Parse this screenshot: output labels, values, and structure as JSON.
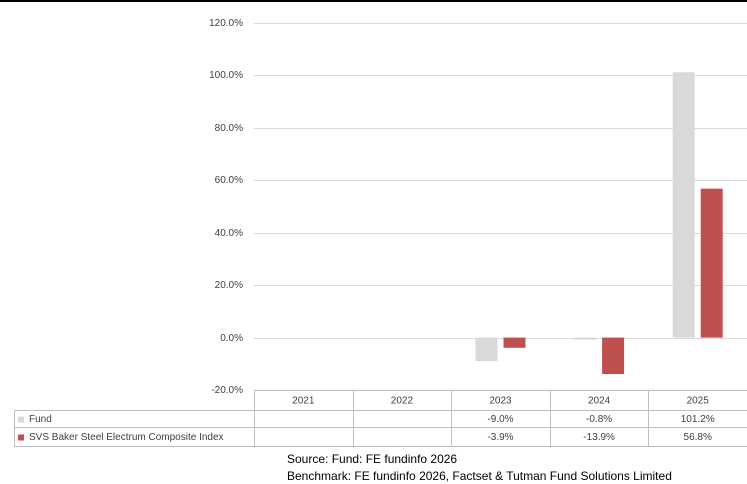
{
  "chart_data": {
    "type": "bar",
    "categories": [
      "2021",
      "2022",
      "2023",
      "2024",
      "2025"
    ],
    "series": [
      {
        "name": "Fund",
        "color": "#d9d9d9",
        "values": [
          null,
          null,
          -9.0,
          -0.8,
          101.2
        ],
        "labels": [
          "",
          "",
          "-9.0%",
          "-0.8%",
          "101.2%"
        ]
      },
      {
        "name": "SVS Baker Steel Electrum Composite Index",
        "color": "#c0504d",
        "values": [
          null,
          null,
          -3.9,
          -13.9,
          56.8
        ],
        "labels": [
          "",
          "",
          "-3.9%",
          "-13.9%",
          "56.8%"
        ]
      }
    ],
    "yticks": [
      -20,
      0,
      20,
      40,
      60,
      80,
      100,
      120
    ],
    "ytick_labels": [
      "-20.0%",
      "0.0%",
      "20.0%",
      "40.0%",
      "60.0%",
      "80.0%",
      "100.0%",
      "120.0%"
    ],
    "ylim": [
      -20,
      120
    ],
    "grid": true,
    "legend": "data-table"
  },
  "source": {
    "fund": "Source: Fund: FE fundinfo 2026",
    "benchmark": "Benchmark: FE fundinfo 2026, Factset & Tutman Fund Solutions Limited"
  }
}
